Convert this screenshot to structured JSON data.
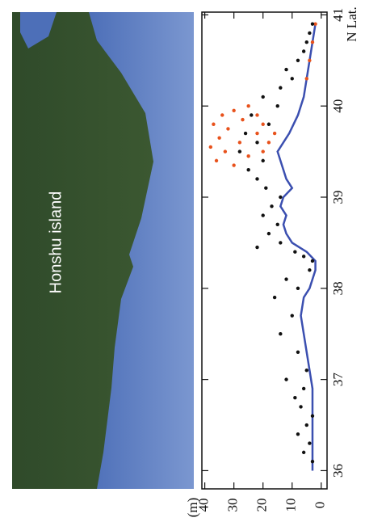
{
  "chart_data": {
    "type": "scatter",
    "annotation": "Honshu island",
    "x_label": "N Lat.",
    "y_label": "(m)",
    "xlim": [
      35.8,
      41.03
    ],
    "xticks": [
      36,
      37,
      38,
      39,
      40,
      41
    ],
    "ylim": [
      -2,
      41
    ],
    "yticks": [
      0,
      10,
      20,
      30,
      40
    ],
    "series": [
      {
        "color": "#3b4fb0",
        "mode": "line",
        "x": [
          36.0,
          36.3,
          36.6,
          36.9,
          37.1,
          37.3,
          37.5,
          37.7,
          37.9,
          38.0,
          38.2,
          38.3,
          38.4,
          38.5,
          38.6,
          38.7,
          38.8,
          38.9,
          39.0,
          39.1,
          39.2,
          39.3,
          39.5,
          39.7,
          39.9,
          40.1,
          40.3,
          40.5,
          40.7,
          40.9
        ],
        "values": [
          3,
          3,
          3,
          3,
          4,
          5,
          6,
          7,
          6,
          4,
          2,
          2,
          5,
          10,
          12,
          13,
          12,
          14,
          13,
          10,
          12,
          13,
          15,
          11,
          8,
          6,
          5,
          4,
          3,
          2
        ]
      },
      {
        "color": "#e8521c",
        "mode": "points",
        "x": [
          39.35,
          39.4,
          39.45,
          39.5,
          39.55,
          39.6,
          39.65,
          39.7,
          39.75,
          39.8,
          39.85,
          39.9,
          39.95,
          40.0,
          39.5,
          39.6,
          39.7,
          39.8,
          39.9,
          40.3,
          40.5,
          40.7,
          40.9
        ],
        "values": [
          30,
          36,
          25,
          33,
          38,
          28,
          35,
          22,
          32,
          37,
          27,
          34,
          30,
          25,
          20,
          18,
          16,
          20,
          22,
          5,
          4,
          3,
          2
        ]
      },
      {
        "color": "#111111",
        "mode": "points",
        "x": [
          36.1,
          36.2,
          36.3,
          36.4,
          36.5,
          36.6,
          36.7,
          36.8,
          36.9,
          37.0,
          37.1,
          37.3,
          37.5,
          37.7,
          37.9,
          38.0,
          38.1,
          38.2,
          38.3,
          38.35,
          38.4,
          38.45,
          38.5,
          38.6,
          38.7,
          38.8,
          38.9,
          39.0,
          39.1,
          39.2,
          39.3,
          39.4,
          39.5,
          39.6,
          39.7,
          39.8,
          39.9,
          40.0,
          40.1,
          40.2,
          40.3,
          40.4,
          40.5,
          40.6,
          40.7,
          40.8,
          40.9
        ],
        "values": [
          3,
          6,
          4,
          8,
          5,
          3,
          7,
          9,
          6,
          12,
          5,
          8,
          14,
          10,
          16,
          8,
          12,
          4,
          3,
          6,
          9,
          22,
          14,
          18,
          15,
          20,
          17,
          14,
          19,
          22,
          25,
          20,
          28,
          22,
          26,
          18,
          24,
          15,
          20,
          14,
          10,
          12,
          8,
          6,
          5,
          4,
          3
        ]
      }
    ]
  }
}
